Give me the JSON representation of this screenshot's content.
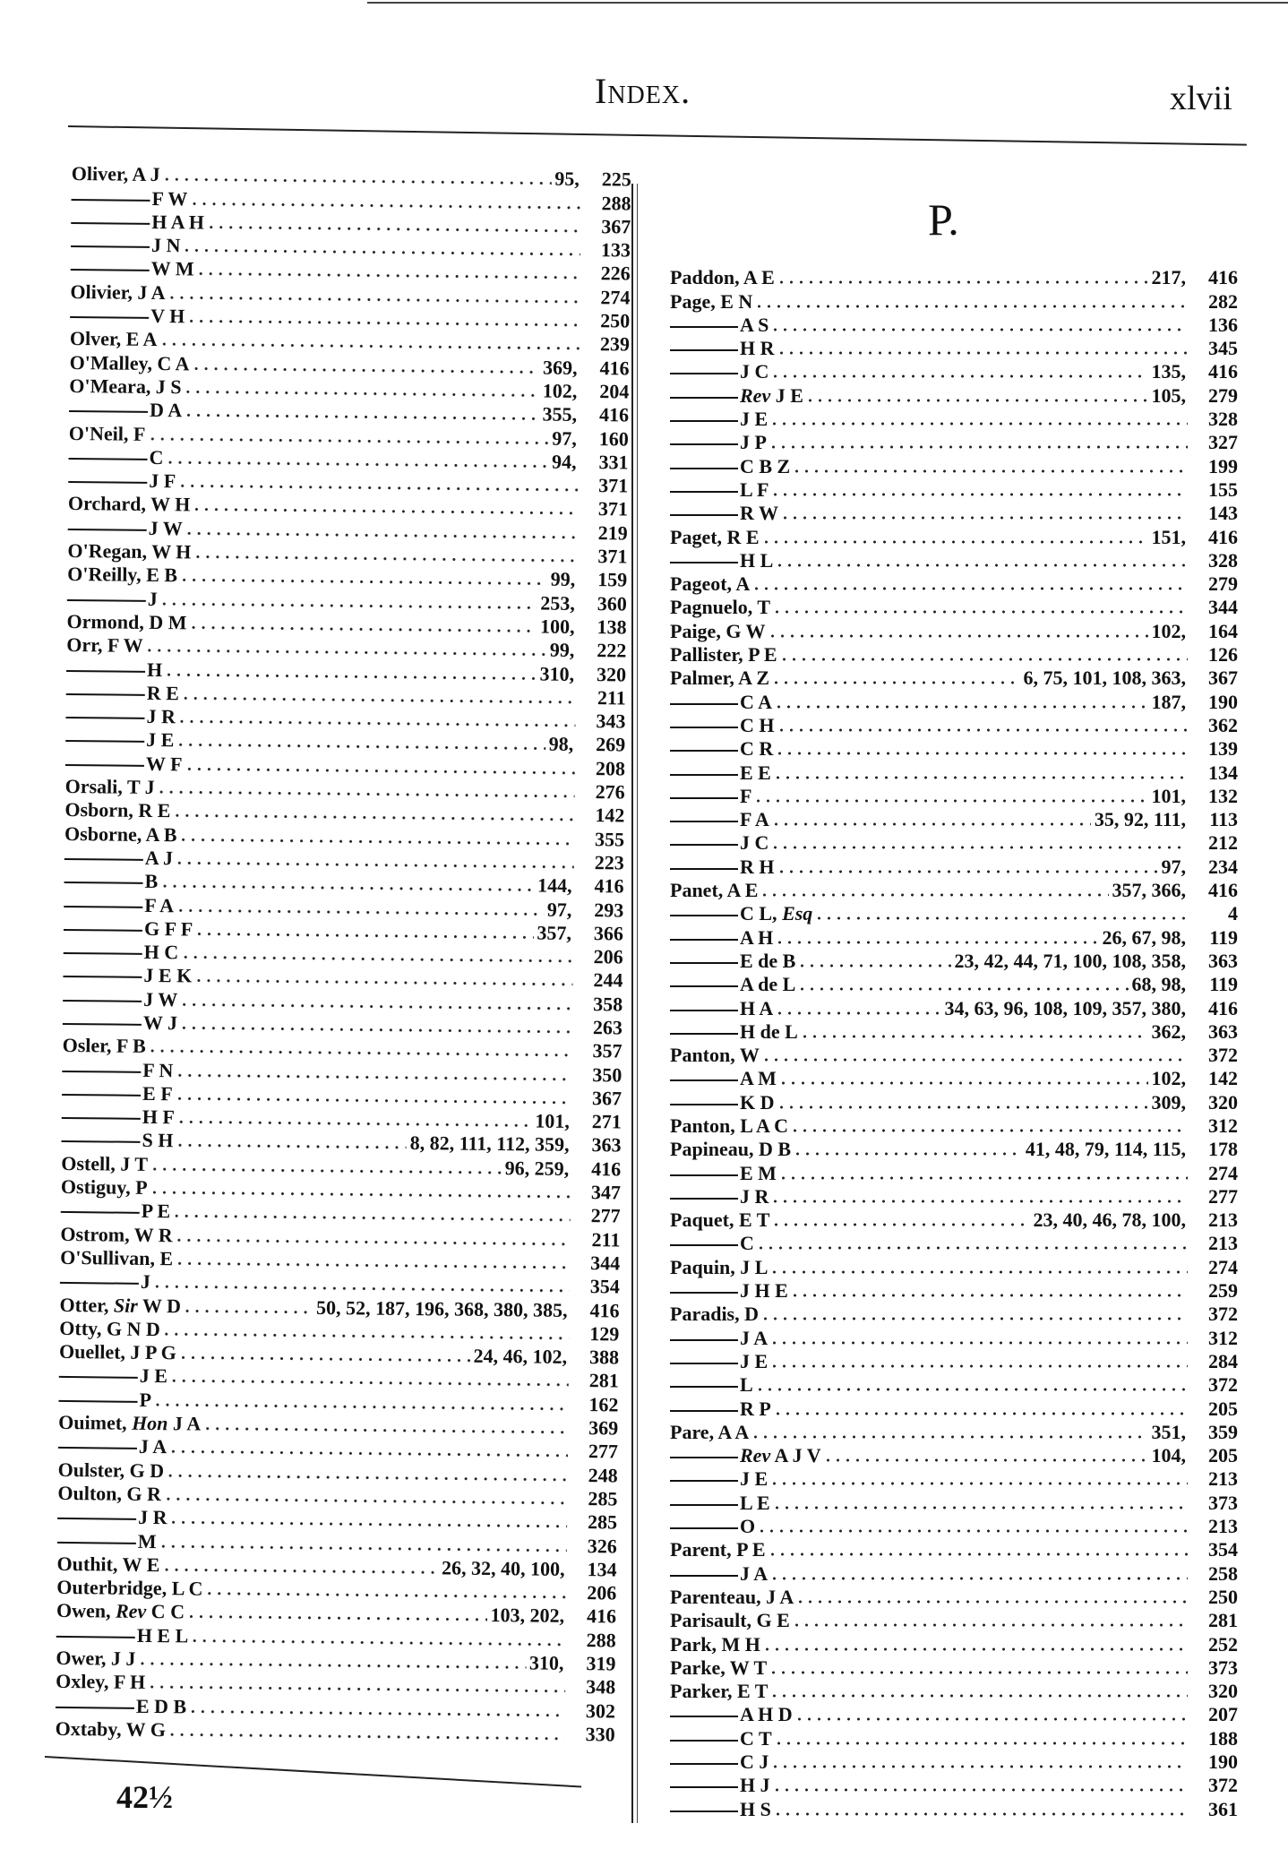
{
  "header": {
    "title": "Index.",
    "page_number": "xlvii"
  },
  "footer": {
    "signature_mark": "42½"
  },
  "right_heading": "P.",
  "left_column": [
    {
      "sub": false,
      "text": "Oliver, A J",
      "refs": "95,",
      "page": "225"
    },
    {
      "sub": true,
      "text": "F W",
      "refs": "",
      "page": "288"
    },
    {
      "sub": true,
      "text": "H A H",
      "refs": "",
      "page": "367"
    },
    {
      "sub": true,
      "text": "J N",
      "refs": "",
      "page": "133"
    },
    {
      "sub": true,
      "text": "W M",
      "refs": "",
      "page": "226"
    },
    {
      "sub": false,
      "text": "Olivier, J A",
      "refs": "",
      "page": "274"
    },
    {
      "sub": true,
      "text": "V H",
      "refs": "",
      "page": "250"
    },
    {
      "sub": false,
      "text": "Olver, E A",
      "refs": "",
      "page": "239"
    },
    {
      "sub": false,
      "text": "O'Malley, C A",
      "refs": "369,",
      "page": "416"
    },
    {
      "sub": false,
      "text": "O'Meara, J S",
      "refs": "102,",
      "page": "204"
    },
    {
      "sub": true,
      "text": "D A",
      "refs": "355,",
      "page": "416"
    },
    {
      "sub": false,
      "text": "O'Neil, F",
      "refs": "97,",
      "page": "160"
    },
    {
      "sub": true,
      "text": "C",
      "refs": "94,",
      "page": "331"
    },
    {
      "sub": true,
      "text": "J F",
      "refs": "",
      "page": "371"
    },
    {
      "sub": false,
      "text": "Orchard, W H",
      "refs": "",
      "page": "371"
    },
    {
      "sub": true,
      "text": "J W",
      "refs": "",
      "page": "219"
    },
    {
      "sub": false,
      "text": "O'Regan, W H",
      "refs": "",
      "page": "371"
    },
    {
      "sub": false,
      "text": "O'Reilly, E B",
      "refs": "99,",
      "page": "159"
    },
    {
      "sub": true,
      "text": "J",
      "refs": "253,",
      "page": "360"
    },
    {
      "sub": false,
      "text": "Ormond, D M",
      "refs": "100,",
      "page": "138"
    },
    {
      "sub": false,
      "text": "Orr, F W",
      "refs": "99,",
      "page": "222"
    },
    {
      "sub": true,
      "text": "H",
      "refs": "310,",
      "page": "320"
    },
    {
      "sub": true,
      "text": "R E",
      "refs": "",
      "page": "211"
    },
    {
      "sub": true,
      "text": "J R",
      "refs": "",
      "page": "343"
    },
    {
      "sub": true,
      "text": "J E",
      "refs": "98,",
      "page": "269"
    },
    {
      "sub": true,
      "text": "W F",
      "refs": "",
      "page": "208"
    },
    {
      "sub": false,
      "text": "Orsali, T J",
      "refs": "",
      "page": "276"
    },
    {
      "sub": false,
      "text": "Osborn, R E",
      "refs": "",
      "page": "142"
    },
    {
      "sub": false,
      "text": "Osborne, A B",
      "refs": "",
      "page": "355"
    },
    {
      "sub": true,
      "text": "A J",
      "refs": "",
      "page": "223"
    },
    {
      "sub": true,
      "text": "B",
      "refs": "144,",
      "page": "416"
    },
    {
      "sub": true,
      "text": "F A",
      "refs": "97,",
      "page": "293"
    },
    {
      "sub": true,
      "text": "G F F",
      "refs": "357,",
      "page": "366"
    },
    {
      "sub": true,
      "text": "H C",
      "refs": "",
      "page": "206"
    },
    {
      "sub": true,
      "text": "J E K",
      "refs": "",
      "page": "244"
    },
    {
      "sub": true,
      "text": "J W",
      "refs": "",
      "page": "358"
    },
    {
      "sub": true,
      "text": "W J",
      "refs": "",
      "page": "263"
    },
    {
      "sub": false,
      "text": "Osler, F B",
      "refs": "",
      "page": "357"
    },
    {
      "sub": true,
      "text": "F N",
      "refs": "",
      "page": "350"
    },
    {
      "sub": true,
      "text": "E F",
      "refs": "",
      "page": "367"
    },
    {
      "sub": true,
      "text": "H F",
      "refs": "101,",
      "page": "271"
    },
    {
      "sub": true,
      "text": "S H",
      "refs": "8, 82, 111, 112, 359,",
      "page": "363"
    },
    {
      "sub": false,
      "text": "Ostell, J T",
      "refs": "96, 259,",
      "page": "416"
    },
    {
      "sub": false,
      "text": "Ostiguy, P",
      "refs": "",
      "page": "347"
    },
    {
      "sub": true,
      "text": "P E",
      "refs": "",
      "page": "277"
    },
    {
      "sub": false,
      "text": "Ostrom, W R",
      "refs": "",
      "page": "211"
    },
    {
      "sub": false,
      "text": "O'Sullivan, E",
      "refs": "",
      "page": "344"
    },
    {
      "sub": true,
      "text": "J",
      "refs": "",
      "page": "354"
    },
    {
      "sub": false,
      "text": "Otter, ",
      "italic": "Sir",
      "after": " W D",
      "refs": "50, 52, 187, 196, 368, 380, 385,",
      "page": "416"
    },
    {
      "sub": false,
      "text": "Otty, G N D",
      "refs": "",
      "page": "129"
    },
    {
      "sub": false,
      "text": "Ouellet, J P G",
      "refs": "24, 46, 102,",
      "page": "388"
    },
    {
      "sub": true,
      "text": "J E",
      "refs": "",
      "page": "281"
    },
    {
      "sub": true,
      "text": "P",
      "refs": "",
      "page": "162"
    },
    {
      "sub": false,
      "text": "Ouimet, ",
      "italic": "Hon",
      "after": " J A",
      "refs": "",
      "page": "369"
    },
    {
      "sub": true,
      "text": "J A",
      "refs": "",
      "page": "277"
    },
    {
      "sub": false,
      "text": "Oulster, G D",
      "refs": "",
      "page": "248"
    },
    {
      "sub": false,
      "text": "Oulton, G R",
      "refs": "",
      "page": "285"
    },
    {
      "sub": true,
      "text": "J R",
      "refs": "",
      "page": "285"
    },
    {
      "sub": true,
      "text": "M",
      "refs": "",
      "page": "326"
    },
    {
      "sub": false,
      "text": "Outhit, W E",
      "refs": "26, 32, 40, 100,",
      "page": "134"
    },
    {
      "sub": false,
      "text": "Outerbridge, L C",
      "refs": "",
      "page": "206"
    },
    {
      "sub": false,
      "text": "Owen, ",
      "italic": "Rev",
      "after": " C C",
      "refs": "103, 202,",
      "page": "416"
    },
    {
      "sub": true,
      "text": "H E L",
      "refs": "",
      "page": "288"
    },
    {
      "sub": false,
      "text": "Ower, J J",
      "refs": "310,",
      "page": "319"
    },
    {
      "sub": false,
      "text": "Oxley, F H",
      "refs": "",
      "page": "348"
    },
    {
      "sub": true,
      "text": "E D B",
      "refs": "",
      "page": "302"
    },
    {
      "sub": false,
      "text": "Oxtaby, W G",
      "refs": "",
      "page": "330"
    }
  ],
  "right_column": [
    {
      "sub": false,
      "text": "Paddon, A E",
      "refs": "217,",
      "page": "416"
    },
    {
      "sub": false,
      "text": "Page, E N",
      "refs": "",
      "page": "282"
    },
    {
      "sub": true,
      "text": "A S",
      "refs": "",
      "page": "136"
    },
    {
      "sub": true,
      "text": "H R",
      "refs": "",
      "page": "345"
    },
    {
      "sub": true,
      "text": "J C",
      "refs": "135,",
      "page": "416"
    },
    {
      "sub": true,
      "text": "",
      "italic": "Rev",
      "after": " J E",
      "refs": "105,",
      "page": "279"
    },
    {
      "sub": true,
      "text": "J E",
      "refs": "",
      "page": "328"
    },
    {
      "sub": true,
      "text": "J P",
      "refs": "",
      "page": "327"
    },
    {
      "sub": true,
      "text": "C B Z",
      "refs": "",
      "page": "199"
    },
    {
      "sub": true,
      "text": "L F",
      "refs": "",
      "page": "155"
    },
    {
      "sub": true,
      "text": "R W",
      "refs": "",
      "page": "143"
    },
    {
      "sub": false,
      "text": "Paget, R E",
      "refs": "151,",
      "page": "416"
    },
    {
      "sub": true,
      "text": "H L",
      "refs": "",
      "page": "328"
    },
    {
      "sub": false,
      "text": "Pageot, A",
      "refs": "",
      "page": "279"
    },
    {
      "sub": false,
      "text": "Pagnuelo, T",
      "refs": "",
      "page": "344"
    },
    {
      "sub": false,
      "text": "Paige, G W",
      "refs": "102,",
      "page": "164"
    },
    {
      "sub": false,
      "text": "Pallister, P E",
      "refs": "",
      "page": "126"
    },
    {
      "sub": false,
      "text": "Palmer, A Z",
      "refs": "6, 75, 101, 108, 363,",
      "page": "367"
    },
    {
      "sub": true,
      "text": "C A",
      "refs": "187,",
      "page": "190"
    },
    {
      "sub": true,
      "text": "C H",
      "refs": "",
      "page": "362"
    },
    {
      "sub": true,
      "text": "C R",
      "refs": "",
      "page": "139"
    },
    {
      "sub": true,
      "text": "E E",
      "refs": "",
      "page": "134"
    },
    {
      "sub": true,
      "text": "F",
      "refs": "101,",
      "page": "132"
    },
    {
      "sub": true,
      "text": "F A",
      "refs": "35, 92, 111,",
      "page": "113"
    },
    {
      "sub": true,
      "text": "J C",
      "refs": "",
      "page": "212"
    },
    {
      "sub": true,
      "text": "R H",
      "refs": "97,",
      "page": "234"
    },
    {
      "sub": false,
      "text": "Panet, A E",
      "refs": "357, 366,",
      "page": "416"
    },
    {
      "sub": true,
      "text": "C L, ",
      "italic": "Esq",
      "after": "",
      "refs": "",
      "page": "4"
    },
    {
      "sub": true,
      "text": "A H",
      "refs": "26, 67, 98,",
      "page": "119"
    },
    {
      "sub": true,
      "text": "E de B",
      "refs": "23, 42, 44, 71, 100, 108, 358,",
      "page": "363"
    },
    {
      "sub": true,
      "text": "A de L",
      "refs": "68, 98,",
      "page": "119"
    },
    {
      "sub": true,
      "text": "H A",
      "refs": "34, 63, 96, 108, 109, 357, 380,",
      "page": "416"
    },
    {
      "sub": true,
      "text": "H de L",
      "refs": "362,",
      "page": "363"
    },
    {
      "sub": false,
      "text": "Panton, W",
      "refs": "",
      "page": "372"
    },
    {
      "sub": true,
      "text": "A M",
      "refs": "102,",
      "page": "142"
    },
    {
      "sub": true,
      "text": "K D",
      "refs": "309,",
      "page": "320"
    },
    {
      "sub": false,
      "text": "Panton, L A C",
      "refs": "",
      "page": "312"
    },
    {
      "sub": false,
      "text": "Papineau, D B",
      "refs": "41, 48, 79, 114, 115,",
      "page": "178"
    },
    {
      "sub": true,
      "text": "E M",
      "refs": "",
      "page": "274"
    },
    {
      "sub": true,
      "text": "J R",
      "refs": "",
      "page": "277"
    },
    {
      "sub": false,
      "text": "Paquet, E T",
      "refs": "23, 40, 46, 78, 100,",
      "page": "213"
    },
    {
      "sub": true,
      "text": "C",
      "refs": "",
      "page": "213"
    },
    {
      "sub": false,
      "text": "Paquin, J L",
      "refs": "",
      "page": "274"
    },
    {
      "sub": true,
      "text": "J H E",
      "refs": "",
      "page": "259"
    },
    {
      "sub": false,
      "text": "Paradis, D",
      "refs": "",
      "page": "372"
    },
    {
      "sub": true,
      "text": "J A",
      "refs": "",
      "page": "312"
    },
    {
      "sub": true,
      "text": "J E",
      "refs": "",
      "page": "284"
    },
    {
      "sub": true,
      "text": "L",
      "refs": "",
      "page": "372"
    },
    {
      "sub": true,
      "text": "R P",
      "refs": "",
      "page": "205"
    },
    {
      "sub": false,
      "text": "Pare, A A",
      "refs": "351,",
      "page": "359"
    },
    {
      "sub": true,
      "text": "",
      "italic": "Rev",
      "after": " A J V",
      "refs": "104,",
      "page": "205"
    },
    {
      "sub": true,
      "text": "J E",
      "refs": "",
      "page": "213"
    },
    {
      "sub": true,
      "text": "L E",
      "refs": "",
      "page": "373"
    },
    {
      "sub": true,
      "text": "O",
      "refs": "",
      "page": "213"
    },
    {
      "sub": false,
      "text": "Parent, P E",
      "refs": "",
      "page": "354"
    },
    {
      "sub": true,
      "text": "J A",
      "refs": "",
      "page": "258"
    },
    {
      "sub": false,
      "text": "Parenteau, J A",
      "refs": "",
      "page": "250"
    },
    {
      "sub": false,
      "text": "Parisault, G E",
      "refs": "",
      "page": "281"
    },
    {
      "sub": false,
      "text": "Park, M H",
      "refs": "",
      "page": "252"
    },
    {
      "sub": false,
      "text": "Parke, W T",
      "refs": "",
      "page": "373"
    },
    {
      "sub": false,
      "text": "Parker, E T",
      "refs": "",
      "page": "320"
    },
    {
      "sub": true,
      "text": "A H D",
      "refs": "",
      "page": "207"
    },
    {
      "sub": true,
      "text": "C T",
      "refs": "",
      "page": "188"
    },
    {
      "sub": true,
      "text": "C J",
      "refs": "",
      "page": "190"
    },
    {
      "sub": true,
      "text": "H J",
      "refs": "",
      "page": "372"
    },
    {
      "sub": true,
      "text": "H S",
      "refs": "",
      "page": "361"
    }
  ]
}
